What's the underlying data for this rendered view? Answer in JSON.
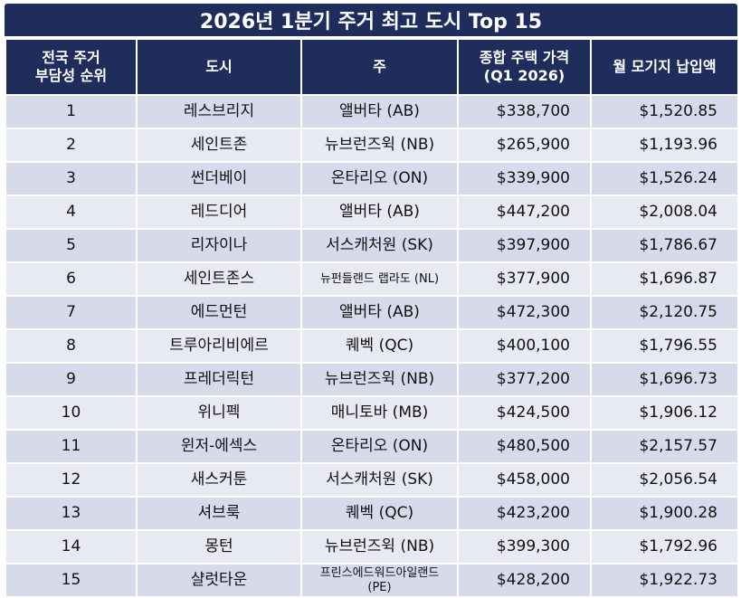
{
  "header": {
    "title": "2026년 1분기 주거 최고 도시 Top 15"
  },
  "table": {
    "headers": [
      "전국 주거\n부담성 순위",
      "도시",
      "주",
      "종합 주택 가격\n(Q1 2026)",
      "월 모기지 납입액"
    ],
    "rows": [
      [
        "1",
        "레스브리지",
        "앨버타 (AB)",
        "$338,700",
        "$1,520.85"
      ],
      [
        "2",
        "세인트존",
        "뉴브런즈윅 (NB)",
        "$265,900",
        "$1,193.96"
      ],
      [
        "3",
        "썬더베이",
        "온타리오 (ON)",
        "$339,900",
        "$1,526.24"
      ],
      [
        "4",
        "레드디어",
        "앨버타 (AB)",
        "$447,200",
        "$2,008.04"
      ],
      [
        "5",
        "리자이나",
        "서스캐처원 (SK)",
        "$397,900",
        "$1,786.67"
      ],
      [
        "6",
        "세인트존스",
        "뉴펀들랜드 랩라도 (NL)",
        "$377,900",
        "$1,696.87"
      ],
      [
        "7",
        "에드먼턴",
        "앨버타 (AB)",
        "$472,300",
        "$2,120.75"
      ],
      [
        "8",
        "트루아리비에르",
        "퀘벡 (QC)",
        "$400,100",
        "$1,796.55"
      ],
      [
        "9",
        "프레더릭턴",
        "뉴브런즈윅 (NB)",
        "$377,200",
        "$1,696.73"
      ],
      [
        "10",
        "위니펙",
        "매니토바 (MB)",
        "$424,500",
        "$1,906.12"
      ],
      [
        "11",
        "윈저-에섹스",
        "온타리오 (ON)",
        "$480,500",
        "$2,157.57"
      ],
      [
        "12",
        "새스커툰",
        "서스캐처원 (SK)",
        "$458,000",
        "$2,056.54"
      ],
      [
        "13",
        "셔브룩",
        "퀘벡 (QC)",
        "$423,200",
        "$1,900.28"
      ],
      [
        "14",
        "몽턴",
        "뉴브런즈윅 (NB)",
        "$399,300",
        "$1,792.96"
      ],
      [
        "15",
        "샬럿타운",
        "프린스에드워드아일랜드\n(PE)",
        "$428,200",
        "$1,922.73"
      ]
    ]
  }
}
